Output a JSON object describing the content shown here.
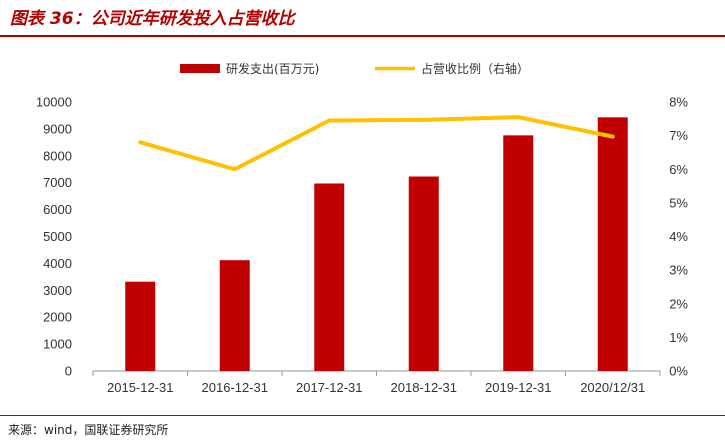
{
  "title": "图表 36：公司近年研发投入占营收比",
  "source": "来源：wind，国联证券研究所",
  "colors": {
    "bar": "#c00000",
    "line": "#ffc000",
    "title": "#b30000"
  },
  "chart_data": {
    "type": "bar",
    "categories": [
      "2015-12-31",
      "2016-12-31",
      "2017-12-31",
      "2018-12-31",
      "2019-12-31",
      "2020/12/31"
    ],
    "series": [
      {
        "name": "研发支出(百万元)",
        "type": "bar",
        "axis": "left",
        "values": [
          3320,
          4120,
          6970,
          7230,
          8760,
          9430
        ]
      },
      {
        "name": "占营收比例（右轴）",
        "type": "line",
        "axis": "right",
        "values": [
          0.068,
          0.06,
          0.0745,
          0.0747,
          0.0755,
          0.0697
        ]
      }
    ],
    "y_left": {
      "min": 0,
      "max": 10000,
      "step": 1000,
      "ticks": [
        "0",
        "1000",
        "2000",
        "3000",
        "4000",
        "5000",
        "6000",
        "7000",
        "8000",
        "9000",
        "10000"
      ]
    },
    "y_right": {
      "min": 0,
      "max": 0.08,
      "step": 0.01,
      "ticks": [
        "0%",
        "1%",
        "2%",
        "3%",
        "4%",
        "5%",
        "6%",
        "7%",
        "8%"
      ]
    },
    "legend": "top-center",
    "grid": false
  }
}
